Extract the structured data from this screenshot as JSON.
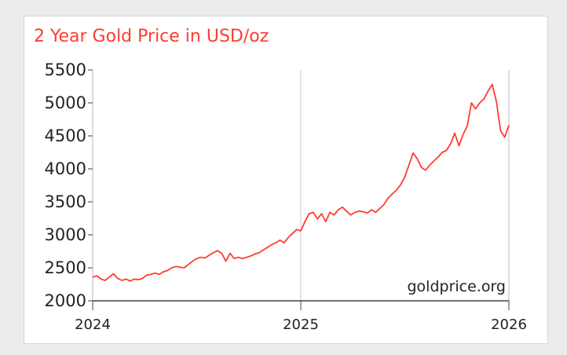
{
  "chart_data": {
    "type": "line",
    "title": "2 Year Gold Price in USD/oz",
    "watermark": "goldprice.org",
    "xlabel": "",
    "ylabel": "",
    "xlim": [
      2024,
      2026
    ],
    "ylim": [
      2000,
      5500
    ],
    "y_ticks": [
      2000,
      2500,
      3000,
      3500,
      4000,
      4500,
      5000,
      5500
    ],
    "x_ticks": [
      "2024",
      "2025",
      "2026"
    ],
    "x_tick_values": [
      2024,
      2025,
      2026
    ],
    "grid": "vertical gridlines at year boundaries",
    "line_color": "#ff3b30",
    "series": [
      {
        "x": [
          2024.0,
          2024.02,
          2024.04,
          2024.06,
          2024.08,
          2024.1,
          2024.12,
          2024.14,
          2024.16,
          2024.18,
          2024.2,
          2024.22,
          2024.24,
          2024.26,
          2024.28,
          2024.3,
          2024.32,
          2024.34,
          2024.36,
          2024.38,
          2024.4,
          2024.42,
          2024.44,
          2024.46,
          2024.48,
          2024.5,
          2024.52,
          2024.54,
          2024.56,
          2024.58,
          2024.6,
          2024.62,
          2024.64,
          2024.66,
          2024.68,
          2024.7,
          2024.72,
          2024.74,
          2024.76,
          2024.78,
          2024.8,
          2024.82,
          2024.84,
          2024.86,
          2024.88,
          2024.9,
          2024.92,
          2024.94,
          2024.96,
          2024.98,
          2025.0,
          2025.02,
          2025.04,
          2025.06,
          2025.08,
          2025.1,
          2025.12,
          2025.14,
          2025.16,
          2025.18,
          2025.2,
          2025.22,
          2025.24,
          2025.26,
          2025.28,
          2025.3,
          2025.32,
          2025.34,
          2025.36,
          2025.38,
          2025.4,
          2025.42,
          2025.44,
          2025.46,
          2025.48,
          2025.5,
          2025.52,
          2025.54,
          2025.56,
          2025.58,
          2025.6,
          2025.62,
          2025.64,
          2025.66,
          2025.68,
          2025.7,
          2025.72,
          2025.74,
          2025.76,
          2025.78,
          2025.8,
          2025.82,
          2025.84,
          2025.86,
          2025.88,
          2025.9,
          2025.92,
          2025.94,
          2025.96,
          2025.98,
          2026.0
        ],
        "y": [
          2360,
          2380,
          2330,
          2310,
          2360,
          2410,
          2340,
          2310,
          2330,
          2300,
          2330,
          2320,
          2340,
          2390,
          2400,
          2420,
          2400,
          2440,
          2460,
          2500,
          2520,
          2510,
          2500,
          2550,
          2600,
          2640,
          2660,
          2650,
          2690,
          2730,
          2760,
          2720,
          2600,
          2720,
          2640,
          2660,
          2640,
          2660,
          2680,
          2710,
          2730,
          2770,
          2810,
          2850,
          2880,
          2920,
          2880,
          2960,
          3020,
          3080,
          3060,
          3200,
          3320,
          3340,
          3240,
          3320,
          3200,
          3340,
          3300,
          3380,
          3420,
          3360,
          3300,
          3340,
          3360,
          3350,
          3330,
          3380,
          3340,
          3400,
          3460,
          3560,
          3620,
          3680,
          3760,
          3880,
          4060,
          4240,
          4150,
          4020,
          3980,
          4060,
          4120,
          4180,
          4250,
          4280,
          4380,
          4540,
          4350,
          4520,
          4650,
          5000,
          4910,
          5000,
          5060,
          5180,
          5280,
          5020,
          4580,
          4480,
          4660
        ]
      }
    ]
  }
}
